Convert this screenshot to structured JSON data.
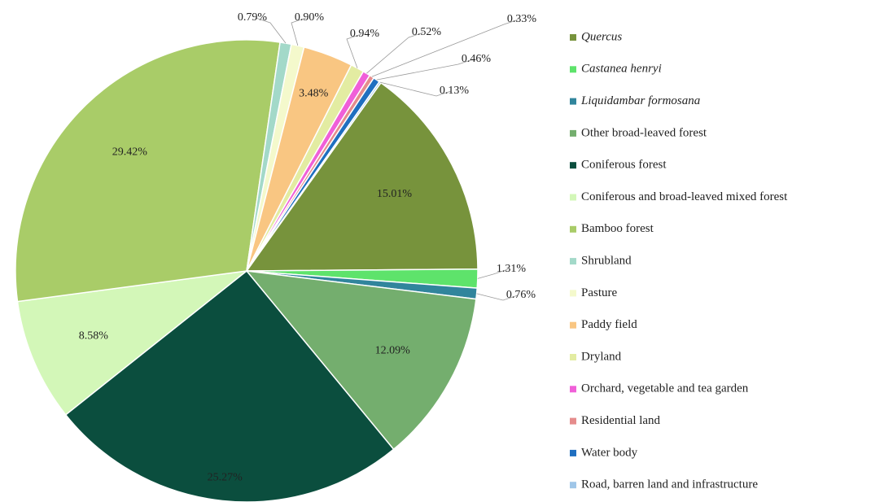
{
  "chart_data": {
    "type": "pie",
    "categories": [
      "Quercus",
      "Castanea henryi",
      "Liquidambar formosana",
      "Other broad-leaved forest",
      "Coniferous forest",
      "Coniferous and broad-leaved mixed forest",
      "Bamboo forest",
      "Shrubland",
      "Pasture",
      "Paddy field",
      "Dryland",
      "Orchard, vegetable and tea garden",
      "Residential land",
      "Water body",
      "Road, barren land and infrastructure"
    ],
    "values": [
      15.01,
      1.31,
      0.76,
      12.09,
      25.27,
      8.58,
      29.42,
      0.79,
      0.9,
      3.48,
      0.94,
      0.52,
      0.33,
      0.46,
      0.13
    ],
    "value_labels": [
      "15.01%",
      "1.31%",
      "0.76%",
      "12.09%",
      "25.27%",
      "8.58%",
      "29.42%",
      "0.79%",
      "0.90%",
      "3.48%",
      "0.94%",
      "0.52%",
      "0.33%",
      "0.46%",
      "0.13%"
    ],
    "colors": [
      "#77933c",
      "#5ee36b",
      "#31859c",
      "#74ae6e",
      "#0b4e3e",
      "#d3f7b8",
      "#a9cc68",
      "#a3d9c9",
      "#f4f9cc",
      "#f9c682",
      "#e3eca2",
      "#f060d8",
      "#e58c8c",
      "#1f6fc0",
      "#9fc6e8"
    ],
    "legend": "right"
  }
}
